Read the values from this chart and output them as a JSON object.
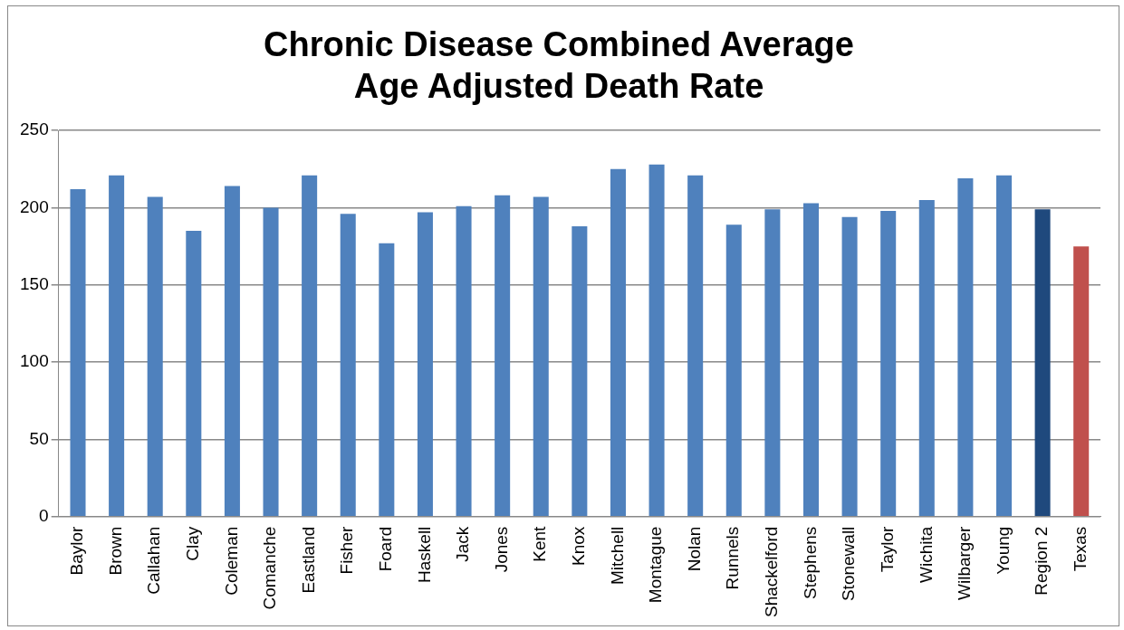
{
  "chart_data": {
    "type": "bar",
    "title": "Chronic Disease Combined Average Age Adjusted Death Rate",
    "categories": [
      "Baylor",
      "Brown",
      "Callahan",
      "Clay",
      "Coleman",
      "Comanche",
      "Eastland",
      "Fisher",
      "Foard",
      "Haskell",
      "Jack",
      "Jones",
      "Kent",
      "Knox",
      "Mitchell",
      "Montague",
      "Nolan",
      "Runnels",
      "Shackelford",
      "Stephens",
      "Stonewall",
      "Taylor",
      "Wichita",
      "Wilbarger",
      "Young",
      "Region 2",
      "Texas"
    ],
    "values": [
      212,
      221,
      207,
      185,
      214,
      200,
      221,
      196,
      177,
      197,
      201,
      208,
      207,
      188,
      225,
      228,
      221,
      189,
      199,
      203,
      194,
      198,
      205,
      219,
      221,
      199,
      175
    ],
    "colors": [
      "#4f81bd",
      "#4f81bd",
      "#4f81bd",
      "#4f81bd",
      "#4f81bd",
      "#4f81bd",
      "#4f81bd",
      "#4f81bd",
      "#4f81bd",
      "#4f81bd",
      "#4f81bd",
      "#4f81bd",
      "#4f81bd",
      "#4f81bd",
      "#4f81bd",
      "#4f81bd",
      "#4f81bd",
      "#4f81bd",
      "#4f81bd",
      "#4f81bd",
      "#4f81bd",
      "#4f81bd",
      "#4f81bd",
      "#4f81bd",
      "#4f81bd",
      "#1f497d",
      "#c0504d"
    ],
    "ylim": [
      0,
      250
    ],
    "yticks": [
      0,
      50,
      100,
      150,
      200,
      250
    ],
    "grid": "y"
  }
}
